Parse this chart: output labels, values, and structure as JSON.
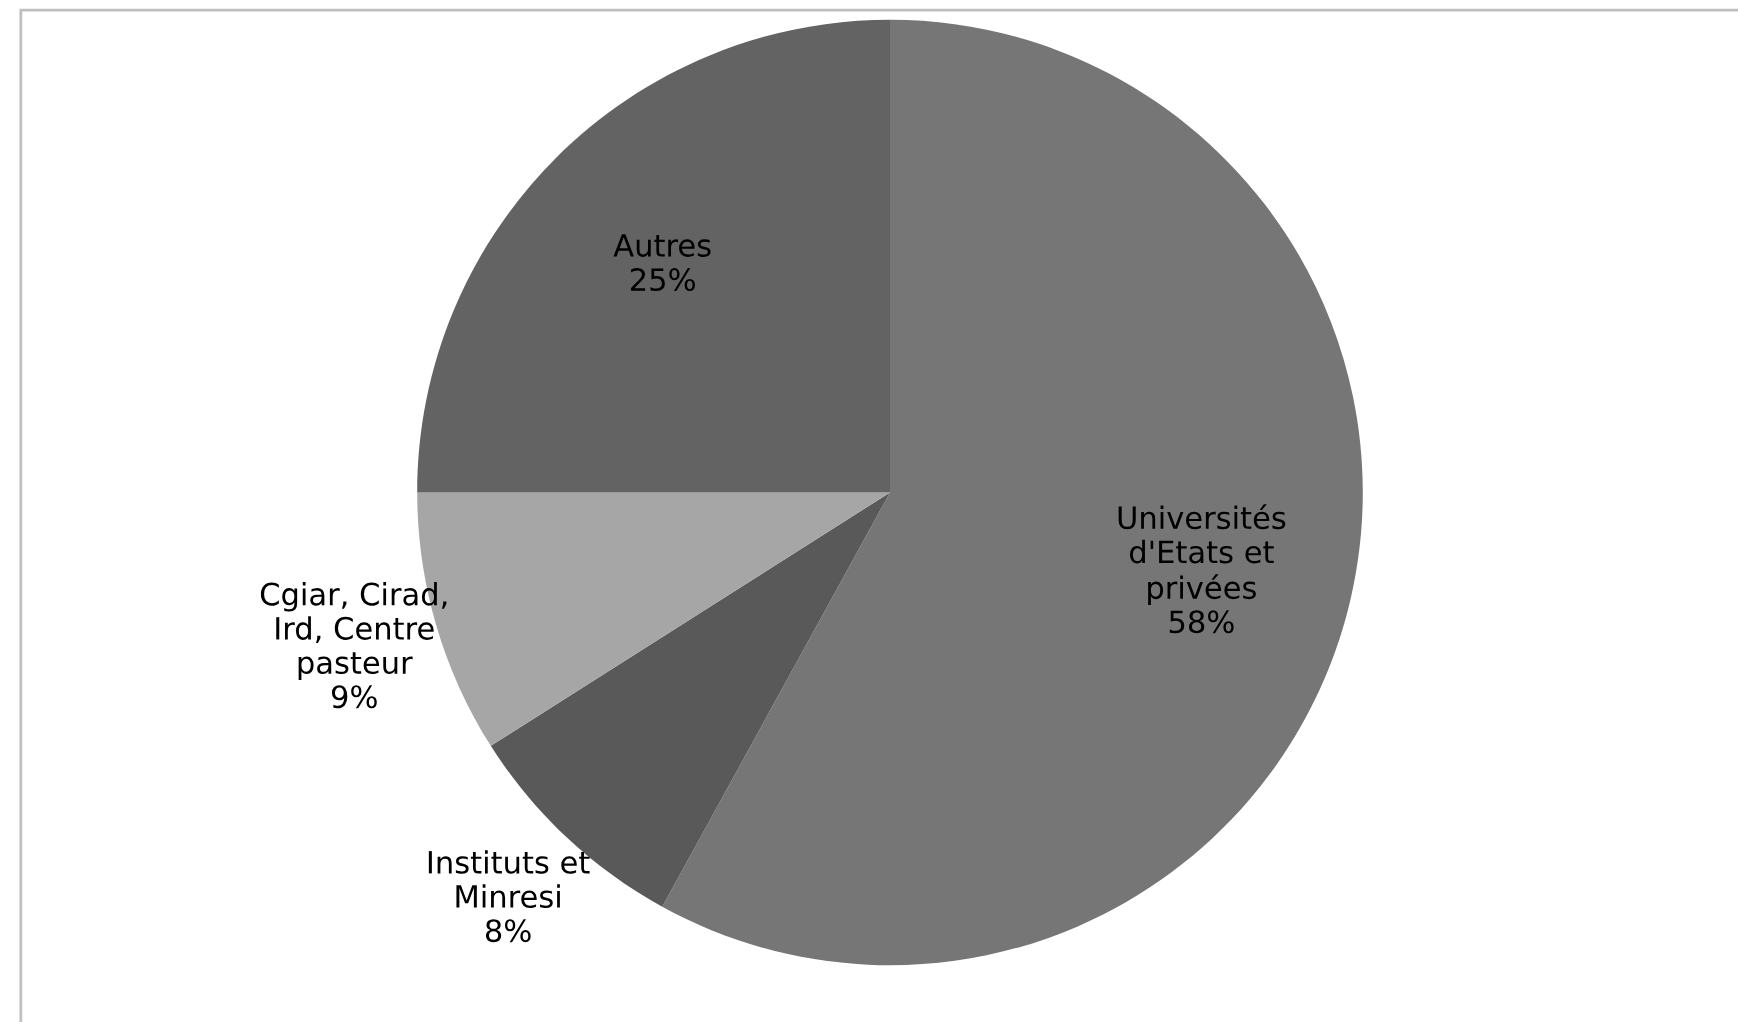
{
  "chart_data": {
    "type": "pie",
    "categories": [
      "Universités\nd'Etats et\nprivées",
      "Instituts et\nMinresi",
      "Cgiar, Cirad,\nIrd, Centre\npasteur",
      "Autres"
    ],
    "values": [
      58,
      8,
      9,
      25
    ],
    "value_labels": [
      "58%",
      "8%",
      "9%",
      "25%"
    ],
    "colors": [
      "#767676",
      "#595959",
      "#a6a6a6",
      "#636363"
    ]
  }
}
